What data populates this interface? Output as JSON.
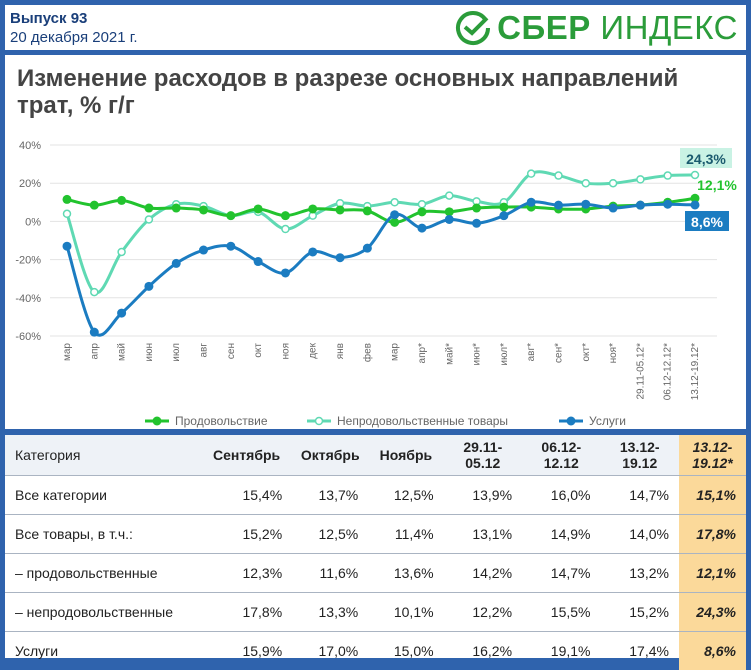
{
  "header": {
    "issue": "Выпуск 93",
    "date": "20 декабря 2021 г.",
    "brand_bold": "СБЕР",
    "brand_rest": "ИНДЕКС",
    "brand_color": "#2b9c3a"
  },
  "chart_title": "Изменение расходов в разрезе основных направлений трат, % г/г",
  "chart_data": {
    "type": "line",
    "categories": [
      "мар",
      "апр",
      "май",
      "июн",
      "июл",
      "авг",
      "сен",
      "окт",
      "ноя",
      "дек",
      "янв",
      "фев",
      "мар",
      "апр*",
      "май*",
      "июн*",
      "июл*",
      "авг*",
      "сен*",
      "окт*",
      "ноя*",
      "29.11-05.12*",
      "06.12-12.12*",
      "13.12-19.12*"
    ],
    "ylim": [
      -60,
      40
    ],
    "yticks": [
      40,
      20,
      0,
      -20,
      -40,
      -60
    ],
    "ytick_labels": [
      "40%",
      "20%",
      "0%",
      "-20%",
      "-40%",
      "-60%"
    ],
    "grid": "horizontal",
    "legend_position": "bottom",
    "series": [
      {
        "name": "Продовольствие",
        "color": "#22c32e",
        "values": [
          11.5,
          8.5,
          11,
          7,
          7,
          6,
          3,
          6.5,
          3,
          6.5,
          6,
          5.5,
          -0.5,
          5,
          5,
          7,
          7.5,
          7.5,
          6.5,
          6.5,
          8,
          8.5,
          10,
          12.1
        ]
      },
      {
        "name": "Непродовольственные товары",
        "color": "#5fd9b3",
        "values": [
          4,
          -37,
          -16,
          1,
          9,
          8,
          3,
          5,
          -4,
          3,
          9.5,
          8,
          10,
          9,
          13.5,
          10.5,
          10,
          25,
          24,
          20,
          20,
          22,
          24,
          24.3
        ]
      },
      {
        "name": "Услуги",
        "color": "#1b7cc1",
        "values": [
          -13,
          -58,
          -48,
          -34,
          -22,
          -15,
          -13,
          -21,
          -27,
          -16,
          -19,
          -14,
          3.5,
          -3.5,
          1,
          -1,
          3,
          10,
          8.5,
          9,
          7,
          8.5,
          9,
          8.6
        ]
      }
    ],
    "end_labels": [
      {
        "text": "24,3%",
        "color": "#1a5a6e",
        "bg": "#c9f2e4"
      },
      {
        "text": "12,1%",
        "color": "#22c32e",
        "bg": "none"
      },
      {
        "text": "8,6%",
        "color": "#ffffff",
        "bg": "#1b7cc1"
      }
    ]
  },
  "table": {
    "headers": [
      "Категория",
      "Сентябрь",
      "Октябрь",
      "Ноябрь",
      "29.11-\n05.12",
      "06.12-\n12.12",
      "13.12-\n19.12",
      "13.12-\n19.12*"
    ],
    "rows": [
      [
        "Все категории",
        "15,4%",
        "13,7%",
        "12,5%",
        "13,9%",
        "16,0%",
        "14,7%",
        "15,1%"
      ],
      [
        "Все товары, в т.ч.:",
        "15,2%",
        "12,5%",
        "11,4%",
        "13,1%",
        "14,9%",
        "14,0%",
        "17,8%"
      ],
      [
        "– продовольственные",
        "12,3%",
        "11,6%",
        "13,6%",
        "14,2%",
        "14,7%",
        "13,2%",
        "12,1%"
      ],
      [
        "– непродовольственные",
        "17,8%",
        "13,3%",
        "10,1%",
        "12,2%",
        "15,5%",
        "15,2%",
        "24,3%"
      ],
      [
        "Услуги",
        "15,9%",
        "17,0%",
        "15,0%",
        "16,2%",
        "19,1%",
        "17,4%",
        "8,6%"
      ]
    ]
  }
}
